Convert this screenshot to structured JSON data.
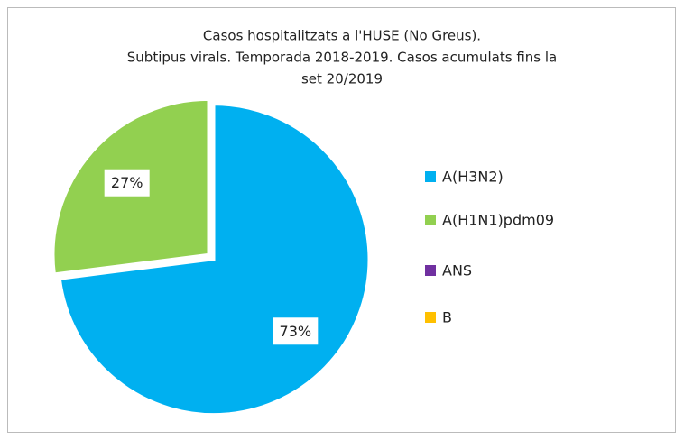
{
  "chart_data": {
    "type": "pie",
    "title": [
      "Casos hospitalitzats a l'HUSE (No Greus).",
      "Subtipus virals.  Temporada 2018-2019. Casos acumulats fins la",
      "set 20/2019"
    ],
    "categories": [
      "A(H3N2)",
      "A(H1N1)pdm09",
      "ANS",
      "B"
    ],
    "values": [
      73,
      27,
      0,
      0
    ],
    "value_labels": [
      "73%",
      "27%",
      null,
      null
    ],
    "colors": [
      "#00b0f0",
      "#92d050",
      "#7030a0",
      "#ffc000"
    ],
    "legend": "right"
  }
}
